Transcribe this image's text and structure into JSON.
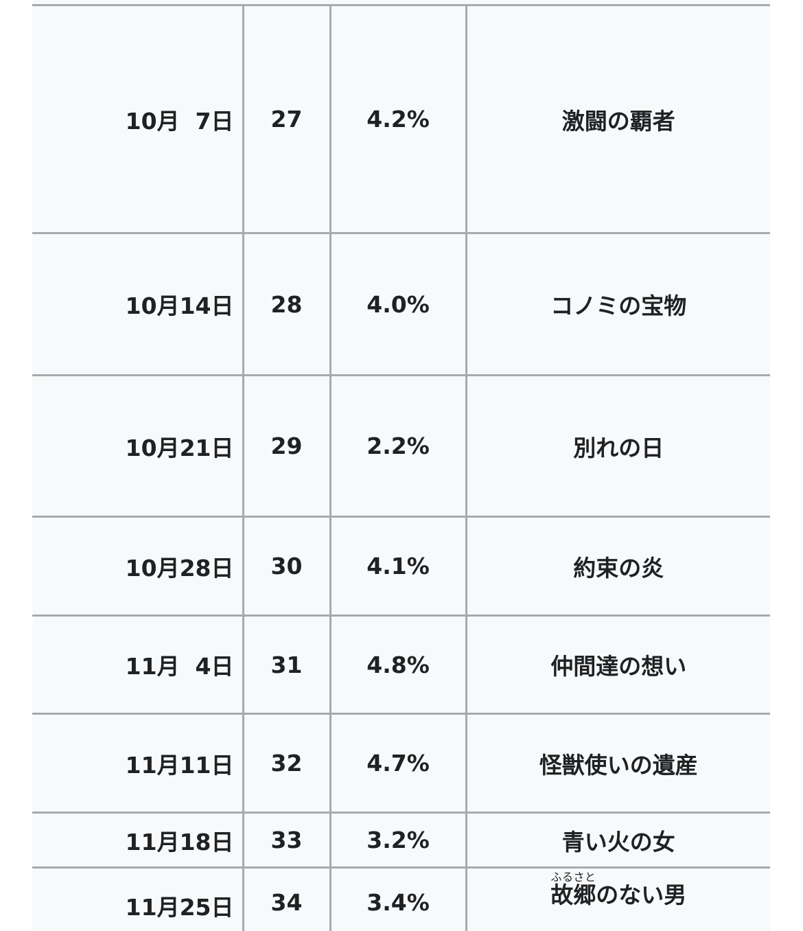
{
  "table": {
    "rows": [
      {
        "date": "10月 7日",
        "episode": "27",
        "rating": "4.2%",
        "title": "激闘の覇者"
      },
      {
        "date": "10月14日",
        "episode": "28",
        "rating": "4.0%",
        "title": "コノミの宝物"
      },
      {
        "date": "10月21日",
        "episode": "29",
        "rating": "2.2%",
        "title": "別れの日"
      },
      {
        "date": "10月28日",
        "episode": "30",
        "rating": "4.1%",
        "title": "約束の炎"
      },
      {
        "date": "11月 4日",
        "episode": "31",
        "rating": "4.8%",
        "title": "仲間達の想い"
      },
      {
        "date": "11月11日",
        "episode": "32",
        "rating": "4.7%",
        "title": "怪獣使いの遺産"
      },
      {
        "date": "11月18日",
        "episode": "33",
        "rating": "3.2%",
        "title": "青い火の女"
      },
      {
        "date": "11月25日",
        "episode": "34",
        "rating": "3.4%",
        "title_ruby_base": "故郷",
        "title_ruby_text": "ふるさと",
        "title_rest": "のない男"
      }
    ]
  }
}
